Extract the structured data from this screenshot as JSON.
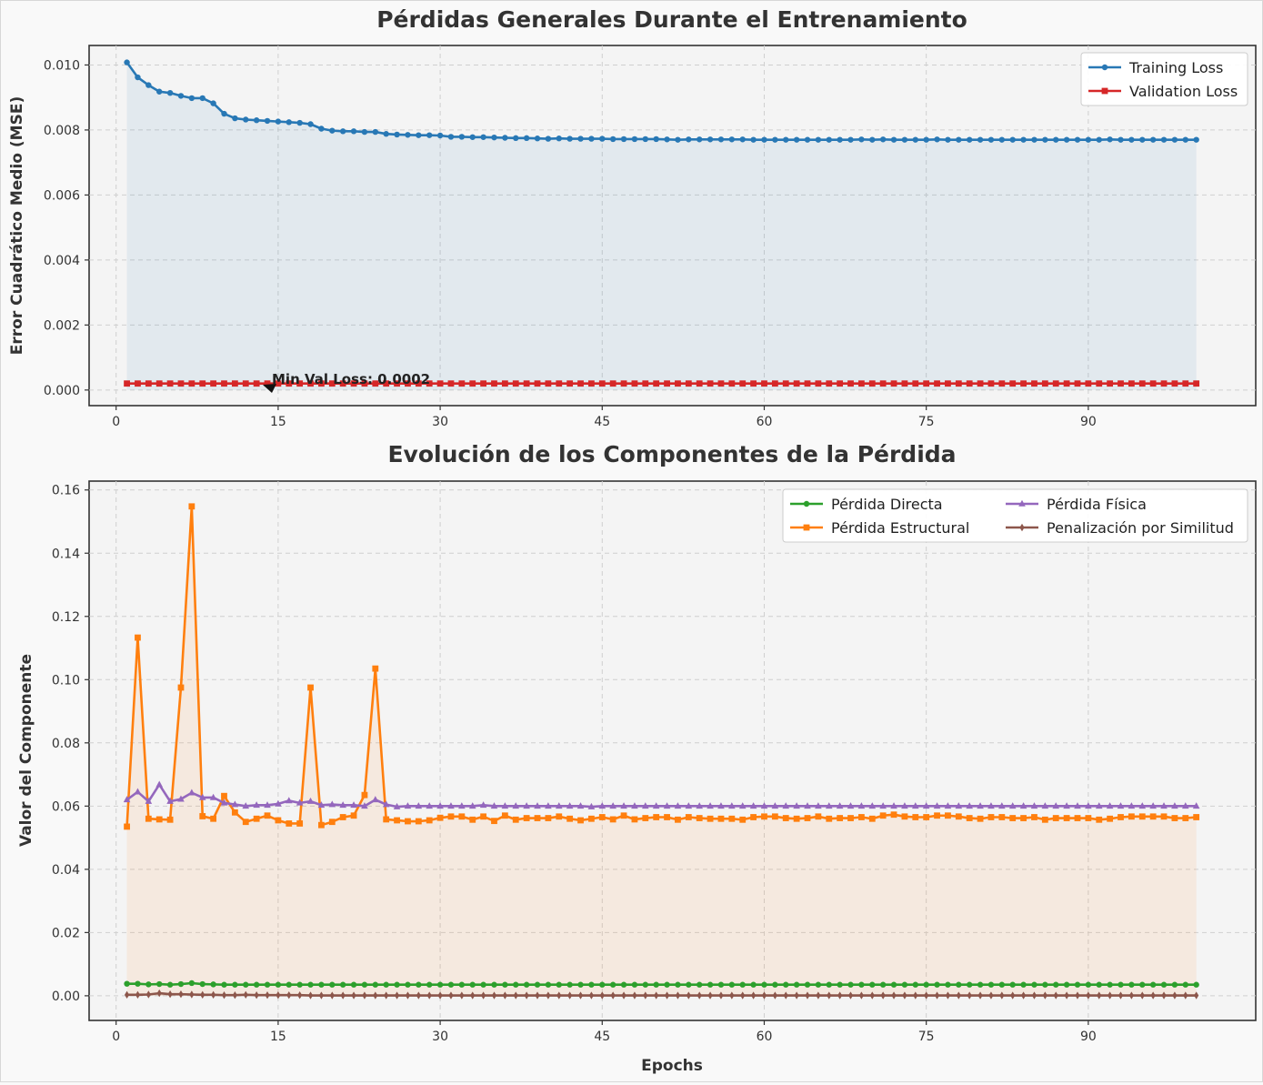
{
  "chart_data": [
    {
      "type": "line",
      "title": "Pérdidas Generales Durante el Entrenamiento",
      "xlabel": "",
      "ylabel": "Error Cuadrático Medio (MSE)",
      "xlim": [
        -2.5,
        105.5
      ],
      "ylim": [
        -0.00048,
        0.0106
      ],
      "xticks": [
        0,
        15,
        30,
        45,
        60,
        75,
        90
      ],
      "yticks": [
        0.0,
        0.002,
        0.004,
        0.006,
        0.008,
        0.01
      ],
      "ytick_labels": [
        "0.000",
        "0.002",
        "0.004",
        "0.006",
        "0.008",
        "0.010"
      ],
      "grid": true,
      "legend": "top-right",
      "x": [
        1,
        2,
        3,
        4,
        5,
        6,
        7,
        8,
        9,
        10,
        11,
        12,
        13,
        14,
        15,
        16,
        17,
        18,
        19,
        20,
        21,
        22,
        23,
        24,
        25,
        26,
        27,
        28,
        29,
        30,
        31,
        32,
        33,
        34,
        35,
        36,
        37,
        38,
        39,
        40,
        41,
        42,
        43,
        44,
        45,
        46,
        47,
        48,
        49,
        50,
        51,
        52,
        53,
        54,
        55,
        56,
        57,
        58,
        59,
        60,
        61,
        62,
        63,
        64,
        65,
        66,
        67,
        68,
        69,
        70,
        71,
        72,
        73,
        74,
        75,
        76,
        77,
        78,
        79,
        80,
        81,
        82,
        83,
        84,
        85,
        86,
        87,
        88,
        89,
        90,
        91,
        92,
        93,
        94,
        95,
        96,
        97,
        98,
        99,
        100
      ],
      "series": [
        {
          "name": "Training Loss",
          "color": "#2878b5",
          "marker": "circle",
          "fill": true,
          "values": [
            0.01008,
            0.00962,
            0.00938,
            0.00918,
            0.00914,
            0.00905,
            0.00898,
            0.00898,
            0.00882,
            0.0085,
            0.00836,
            0.00832,
            0.0083,
            0.00828,
            0.00826,
            0.00824,
            0.00822,
            0.00818,
            0.00804,
            0.00798,
            0.00796,
            0.00796,
            0.00794,
            0.00794,
            0.00788,
            0.00786,
            0.00785,
            0.00784,
            0.00784,
            0.00783,
            0.00779,
            0.00779,
            0.00778,
            0.00778,
            0.00777,
            0.00776,
            0.00775,
            0.00775,
            0.00774,
            0.00773,
            0.00774,
            0.00773,
            0.00773,
            0.00773,
            0.00773,
            0.00772,
            0.00772,
            0.00772,
            0.00772,
            0.00772,
            0.00771,
            0.0077,
            0.00771,
            0.00771,
            0.00771,
            0.00771,
            0.00771,
            0.00771,
            0.0077,
            0.0077,
            0.0077,
            0.0077,
            0.0077,
            0.0077,
            0.0077,
            0.0077,
            0.0077,
            0.0077,
            0.00771,
            0.0077,
            0.00771,
            0.0077,
            0.0077,
            0.0077,
            0.0077,
            0.00771,
            0.0077,
            0.0077,
            0.0077,
            0.0077,
            0.0077,
            0.0077,
            0.0077,
            0.0077,
            0.0077,
            0.0077,
            0.0077,
            0.0077,
            0.0077,
            0.0077,
            0.0077,
            0.00771,
            0.0077,
            0.0077,
            0.0077,
            0.0077,
            0.0077,
            0.0077,
            0.0077,
            0.0077
          ]
        },
        {
          "name": "Validation Loss",
          "color": "#d62728",
          "marker": "square",
          "fill": false,
          "values": [
            0.0002,
            0.0002,
            0.0002,
            0.0002,
            0.0002,
            0.0002,
            0.0002,
            0.0002,
            0.0002,
            0.0002,
            0.0002,
            0.0002,
            0.0002,
            0.0002,
            0.0002,
            0.0002,
            0.0002,
            0.0002,
            0.0002,
            0.0002,
            0.0002,
            0.0002,
            0.0002,
            0.0002,
            0.0002,
            0.0002,
            0.0002,
            0.0002,
            0.0002,
            0.0002,
            0.0002,
            0.0002,
            0.0002,
            0.0002,
            0.0002,
            0.0002,
            0.0002,
            0.0002,
            0.0002,
            0.0002,
            0.0002,
            0.0002,
            0.0002,
            0.0002,
            0.0002,
            0.0002,
            0.0002,
            0.0002,
            0.0002,
            0.0002,
            0.0002,
            0.0002,
            0.0002,
            0.0002,
            0.0002,
            0.0002,
            0.0002,
            0.0002,
            0.0002,
            0.0002,
            0.0002,
            0.0002,
            0.0002,
            0.0002,
            0.0002,
            0.0002,
            0.0002,
            0.0002,
            0.0002,
            0.0002,
            0.0002,
            0.0002,
            0.0002,
            0.0002,
            0.0002,
            0.0002,
            0.0002,
            0.0002,
            0.0002,
            0.0002,
            0.0002,
            0.0002,
            0.0002,
            0.0002,
            0.0002,
            0.0002,
            0.0002,
            0.0002,
            0.0002,
            0.0002,
            0.0002,
            0.0002,
            0.0002,
            0.0002,
            0.0002,
            0.0002,
            0.0002,
            0.0002,
            0.0002,
            0.0002
          ]
        }
      ],
      "annotation": {
        "text": "Min Val Loss: 0.0002",
        "x": 13,
        "y": 0.0002
      }
    },
    {
      "type": "line",
      "title": "Evolución de los Componentes de la Pérdida",
      "xlabel": "Epochs",
      "ylabel": "Valor del Componente",
      "xlim": [
        -2.5,
        105.5
      ],
      "ylim": [
        -0.0078,
        0.1628
      ],
      "xticks": [
        0,
        15,
        30,
        45,
        60,
        75,
        90
      ],
      "yticks": [
        0.0,
        0.02,
        0.04,
        0.06,
        0.08,
        0.1,
        0.12,
        0.14,
        0.16
      ],
      "ytick_labels": [
        "0.00",
        "0.02",
        "0.04",
        "0.06",
        "0.08",
        "0.10",
        "0.12",
        "0.14",
        "0.16"
      ],
      "grid": true,
      "legend": "top-right",
      "x": [
        1,
        2,
        3,
        4,
        5,
        6,
        7,
        8,
        9,
        10,
        11,
        12,
        13,
        14,
        15,
        16,
        17,
        18,
        19,
        20,
        21,
        22,
        23,
        24,
        25,
        26,
        27,
        28,
        29,
        30,
        31,
        32,
        33,
        34,
        35,
        36,
        37,
        38,
        39,
        40,
        41,
        42,
        43,
        44,
        45,
        46,
        47,
        48,
        49,
        50,
        51,
        52,
        53,
        54,
        55,
        56,
        57,
        58,
        59,
        60,
        61,
        62,
        63,
        64,
        65,
        66,
        67,
        68,
        69,
        70,
        71,
        72,
        73,
        74,
        75,
        76,
        77,
        78,
        79,
        80,
        81,
        82,
        83,
        84,
        85,
        86,
        87,
        88,
        89,
        90,
        91,
        92,
        93,
        94,
        95,
        96,
        97,
        98,
        99,
        100
      ],
      "series": [
        {
          "name": "Pérdida Directa",
          "color": "#2ca02c",
          "marker": "circle",
          "fill": false,
          "values": [
            0.0038,
            0.0038,
            0.0036,
            0.0037,
            0.0035,
            0.0037,
            0.004,
            0.0037,
            0.0036,
            0.0035,
            0.0035,
            0.0035,
            0.0035,
            0.0035,
            0.0035,
            0.0035,
            0.0035,
            0.0035,
            0.0035,
            0.0035,
            0.0035,
            0.0035,
            0.0035,
            0.0035,
            0.0035,
            0.0035,
            0.0035,
            0.0035,
            0.0035,
            0.0035,
            0.0035,
            0.0035,
            0.0035,
            0.0035,
            0.0035,
            0.0035,
            0.0035,
            0.0035,
            0.0035,
            0.0035,
            0.0035,
            0.0035,
            0.0035,
            0.0035,
            0.0035,
            0.0035,
            0.0035,
            0.0035,
            0.0035,
            0.0035,
            0.0035,
            0.0035,
            0.0035,
            0.0035,
            0.0035,
            0.0035,
            0.0035,
            0.0035,
            0.0035,
            0.0035,
            0.0035,
            0.0035,
            0.0035,
            0.0035,
            0.0035,
            0.0035,
            0.0035,
            0.0035,
            0.0035,
            0.0035,
            0.0035,
            0.0035,
            0.0035,
            0.0035,
            0.0035,
            0.0035,
            0.0035,
            0.0035,
            0.0035,
            0.0035,
            0.0035,
            0.0035,
            0.0035,
            0.0035,
            0.0035,
            0.0035,
            0.0035,
            0.0035,
            0.0035,
            0.0035,
            0.0035,
            0.0035,
            0.0035,
            0.0035,
            0.0035,
            0.0035,
            0.0035,
            0.0035,
            0.0035,
            0.0035
          ]
        },
        {
          "name": "Pérdida Estructural",
          "color": "#ff7f0e",
          "marker": "square",
          "fill": true,
          "values": [
            0.0535,
            0.1133,
            0.056,
            0.0558,
            0.0557,
            0.0975,
            0.1548,
            0.0568,
            0.056,
            0.0632,
            0.058,
            0.055,
            0.056,
            0.057,
            0.0555,
            0.0545,
            0.0545,
            0.0975,
            0.054,
            0.055,
            0.0565,
            0.057,
            0.0635,
            0.1035,
            0.0558,
            0.0555,
            0.0552,
            0.0552,
            0.0555,
            0.0563,
            0.0567,
            0.0567,
            0.0557,
            0.0567,
            0.0553,
            0.057,
            0.0557,
            0.0562,
            0.0562,
            0.0562,
            0.0567,
            0.056,
            0.0555,
            0.056,
            0.0565,
            0.0558,
            0.057,
            0.0558,
            0.0562,
            0.0565,
            0.0565,
            0.0557,
            0.0565,
            0.0562,
            0.056,
            0.056,
            0.056,
            0.0557,
            0.0565,
            0.0567,
            0.0567,
            0.0562,
            0.056,
            0.0562,
            0.0567,
            0.056,
            0.0562,
            0.0562,
            0.0565,
            0.056,
            0.057,
            0.0573,
            0.0567,
            0.0565,
            0.0565,
            0.057,
            0.057,
            0.0567,
            0.0562,
            0.056,
            0.0565,
            0.0565,
            0.0562,
            0.0562,
            0.0565,
            0.0557,
            0.0562,
            0.0562,
            0.0562,
            0.0562,
            0.0557,
            0.056,
            0.0565,
            0.0567,
            0.0567,
            0.0567,
            0.0567,
            0.0562,
            0.0562,
            0.0565
          ]
        },
        {
          "name": "Pérdida Física",
          "color": "#9467bd",
          "marker": "triangle",
          "fill": false,
          "values": [
            0.062,
            0.0645,
            0.0615,
            0.0668,
            0.0615,
            0.0622,
            0.0642,
            0.0627,
            0.0627,
            0.061,
            0.0605,
            0.06,
            0.0603,
            0.0603,
            0.0607,
            0.0617,
            0.061,
            0.0615,
            0.0603,
            0.0605,
            0.0603,
            0.0603,
            0.06,
            0.062,
            0.0605,
            0.0598,
            0.06,
            0.06,
            0.06,
            0.06,
            0.06,
            0.06,
            0.06,
            0.0603,
            0.06,
            0.06,
            0.06,
            0.06,
            0.06,
            0.06,
            0.06,
            0.06,
            0.06,
            0.0598,
            0.06,
            0.06,
            0.06,
            0.06,
            0.06,
            0.06,
            0.06,
            0.06,
            0.06,
            0.06,
            0.06,
            0.06,
            0.06,
            0.06,
            0.06,
            0.06,
            0.06,
            0.06,
            0.06,
            0.06,
            0.06,
            0.06,
            0.06,
            0.06,
            0.06,
            0.06,
            0.06,
            0.06,
            0.06,
            0.06,
            0.06,
            0.06,
            0.06,
            0.06,
            0.06,
            0.06,
            0.06,
            0.06,
            0.06,
            0.06,
            0.06,
            0.06,
            0.06,
            0.06,
            0.06,
            0.06,
            0.06,
            0.06,
            0.06,
            0.06,
            0.06,
            0.06,
            0.06,
            0.06,
            0.06,
            0.06
          ]
        },
        {
          "name": "Penalización por Similitud",
          "color": "#8c564b",
          "marker": "diamond",
          "fill": true,
          "values": [
            0.0003,
            0.0003,
            0.0004,
            0.0008,
            0.0005,
            0.0005,
            0.0004,
            0.0003,
            0.0003,
            0.0002,
            0.0002,
            0.0003,
            0.0002,
            0.0002,
            0.0002,
            0.0002,
            0.0002,
            0.0001,
            0.0001,
            0.0001,
            0.0001,
            0.0001,
            0.0001,
            0.0001,
            0.0001,
            0.0001,
            0.0001,
            0.0001,
            0.0001,
            0.0001,
            0.0001,
            0.0001,
            0.0001,
            0.0001,
            0.0001,
            0.0001,
            0.0001,
            0.0001,
            0.0001,
            0.0001,
            0.0001,
            0.0001,
            0.0001,
            0.0001,
            0.0001,
            0.0001,
            0.0001,
            0.0001,
            0.0001,
            0.0001,
            0.0001,
            0.0001,
            0.0001,
            0.0001,
            0.0001,
            0.0001,
            0.0001,
            0.0001,
            0.0001,
            0.0001,
            0.0001,
            0.0001,
            0.0001,
            0.0001,
            0.0001,
            0.0001,
            0.0001,
            0.0001,
            0.0001,
            0.0001,
            0.0001,
            0.0001,
            0.0001,
            0.0001,
            0.0001,
            0.0001,
            0.0001,
            0.0001,
            0.0001,
            0.0001,
            0.0001,
            0.0001,
            0.0001,
            0.0001,
            0.0001,
            0.0001,
            0.0001,
            0.0001,
            0.0001,
            0.0001,
            0.0001,
            0.0001,
            0.0001,
            0.0001,
            0.0001,
            0.0001,
            0.0001,
            0.0001,
            0.0001,
            0.0001
          ]
        }
      ]
    }
  ]
}
